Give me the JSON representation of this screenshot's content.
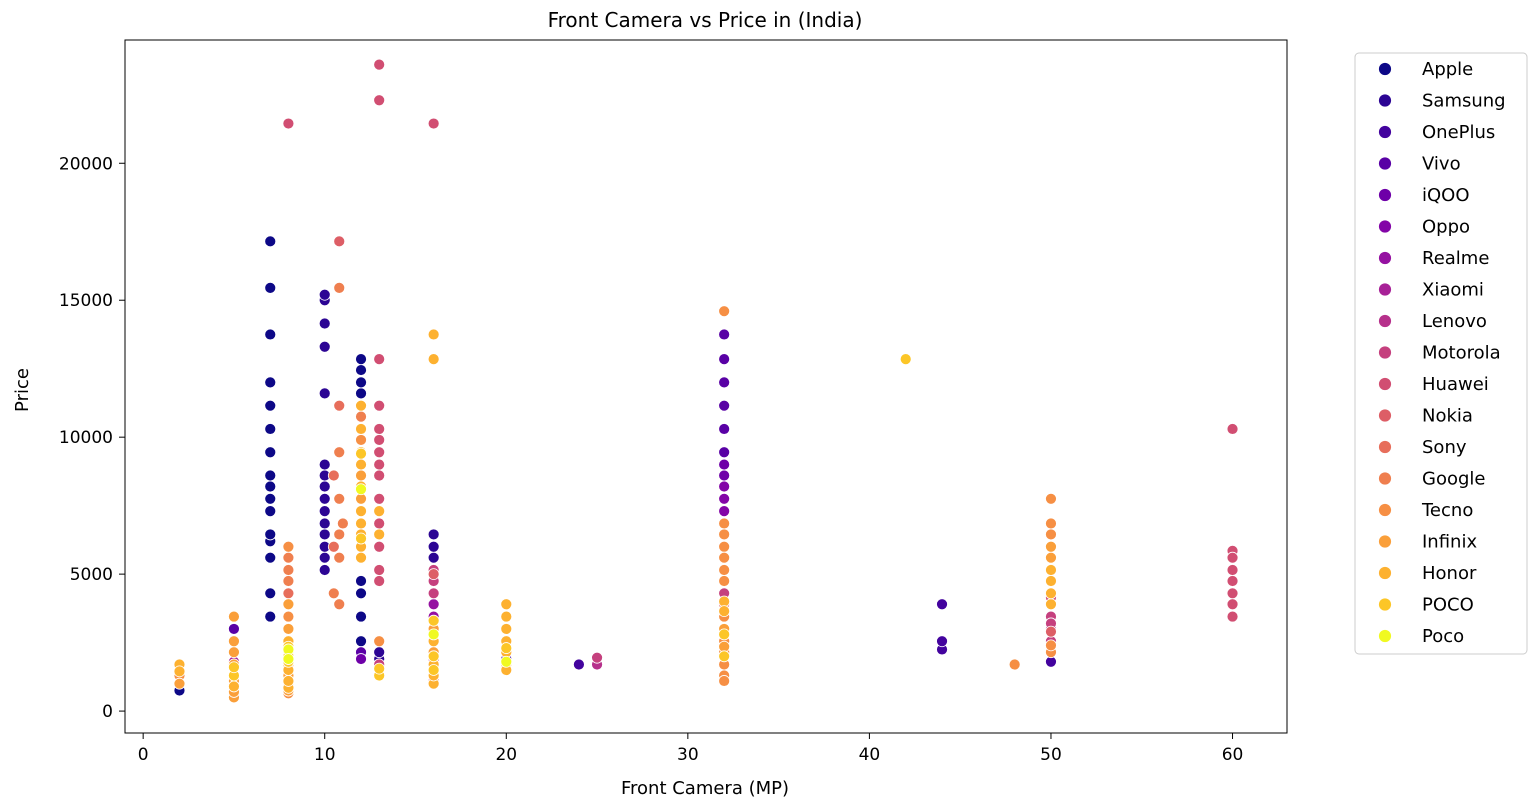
{
  "chart_data": {
    "type": "scatter",
    "title": "Front Camera vs Price in (India)",
    "xlabel": "Front Camera (MP)",
    "ylabel": "Price",
    "xlim": [
      -1,
      63
    ],
    "ylim": [
      -800,
      24500
    ],
    "x_ticks": [
      0,
      10,
      20,
      30,
      40,
      50,
      60
    ],
    "x_tick_labels": [
      "0",
      "10",
      "20",
      "30",
      "40",
      "50",
      "60"
    ],
    "y_ticks": [
      0,
      5000,
      10000,
      15000,
      20000
    ],
    "y_tick_labels": [
      "0",
      "5000",
      "10000",
      "15000",
      "20000"
    ],
    "grid": false,
    "legend_position": "outside-right",
    "series": [
      {
        "name": "Apple",
        "color": "#0d0887",
        "points": [
          [
            2,
            750
          ],
          [
            7,
            3450
          ],
          [
            7,
            4300
          ],
          [
            7,
            5600
          ],
          [
            7,
            6200
          ],
          [
            7,
            6450
          ],
          [
            7,
            7300
          ],
          [
            7,
            7750
          ],
          [
            7,
            8200
          ],
          [
            7,
            8600
          ],
          [
            7,
            9450
          ],
          [
            7,
            10300
          ],
          [
            7,
            11150
          ],
          [
            7,
            12000
          ],
          [
            7,
            13750
          ],
          [
            7,
            15450
          ],
          [
            7,
            17150
          ],
          [
            12,
            2550
          ],
          [
            12,
            3450
          ],
          [
            12,
            4300
          ],
          [
            12,
            4750
          ],
          [
            12,
            6000
          ],
          [
            12,
            7300
          ],
          [
            12,
            8600
          ],
          [
            12,
            9900
          ],
          [
            12,
            10750
          ],
          [
            12,
            11150
          ],
          [
            12,
            11600
          ],
          [
            12,
            12000
          ],
          [
            12,
            12450
          ],
          [
            12,
            12850
          ]
        ]
      },
      {
        "name": "Samsung",
        "color": "#2c0594",
        "points": [
          [
            10,
            5150
          ],
          [
            10,
            5600
          ],
          [
            10,
            6000
          ],
          [
            10,
            6450
          ],
          [
            10,
            6850
          ],
          [
            10,
            7300
          ],
          [
            10,
            7750
          ],
          [
            10,
            8200
          ],
          [
            10,
            8600
          ],
          [
            10,
            9000
          ],
          [
            10,
            11600
          ],
          [
            10,
            13300
          ],
          [
            10,
            14150
          ],
          [
            10,
            15000
          ],
          [
            10,
            15200
          ],
          [
            13,
            1900
          ],
          [
            13,
            2150
          ],
          [
            16,
            3450
          ],
          [
            16,
            3900
          ],
          [
            16,
            4300
          ],
          [
            16,
            4750
          ],
          [
            16,
            5150
          ],
          [
            16,
            5600
          ],
          [
            16,
            6000
          ],
          [
            16,
            6450
          ]
        ]
      },
      {
        "name": "OnePlus",
        "color": "#43039e",
        "points": [
          [
            13,
            1700
          ],
          [
            20,
            1900
          ],
          [
            20,
            2150
          ],
          [
            24,
            1700
          ],
          [
            44,
            2250
          ],
          [
            44,
            2550
          ],
          [
            44,
            3900
          ],
          [
            50,
            1800
          ]
        ]
      },
      {
        "name": "Vivo",
        "color": "#5901a5",
        "points": [
          [
            32,
            9450
          ],
          [
            32,
            10300
          ],
          [
            32,
            11150
          ],
          [
            32,
            12000
          ],
          [
            32,
            12850
          ],
          [
            32,
            13750
          ],
          [
            5,
            3000
          ],
          [
            12,
            2150
          ],
          [
            16,
            3000
          ]
        ]
      },
      {
        "name": "iQOO",
        "color": "#6e00a8",
        "points": [
          [
            32,
            8600
          ],
          [
            32,
            9000
          ],
          [
            12,
            1900
          ]
        ]
      },
      {
        "name": "Oppo",
        "color": "#8305a7",
        "points": [
          [
            32,
            7300
          ],
          [
            32,
            7750
          ],
          [
            32,
            8200
          ],
          [
            16,
            2550
          ],
          [
            5,
            2150
          ]
        ]
      },
      {
        "name": "Realme",
        "color": "#9511a1",
        "points": [
          [
            16,
            3450
          ],
          [
            16,
            3900
          ],
          [
            8,
            2150
          ],
          [
            32,
            6850
          ]
        ]
      },
      {
        "name": "Xiaomi",
        "color": "#a72197",
        "points": [
          [
            16,
            2150
          ],
          [
            16,
            3000
          ],
          [
            32,
            6000
          ],
          [
            32,
            6450
          ],
          [
            5,
            1800
          ],
          [
            50,
            3000
          ]
        ]
      },
      {
        "name": "Lenovo",
        "color": "#b6308b",
        "points": [
          [
            16,
            1700
          ],
          [
            16,
            1900
          ],
          [
            32,
            5150
          ],
          [
            32,
            5600
          ],
          [
            25,
            1700
          ],
          [
            8,
            1900
          ]
        ]
      },
      {
        "name": "Motorola",
        "color": "#c5407e",
        "points": [
          [
            16,
            4300
          ],
          [
            16,
            4750
          ],
          [
            16,
            5150
          ],
          [
            32,
            4300
          ],
          [
            32,
            4750
          ],
          [
            32,
            2550
          ],
          [
            13,
            1700
          ],
          [
            25,
            1950
          ],
          [
            50,
            2550
          ],
          [
            50,
            3450
          ],
          [
            50,
            3200
          ],
          [
            16,
            2550
          ],
          [
            16,
            1300
          ],
          [
            16,
            1100
          ]
        ]
      },
      {
        "name": "Huawei",
        "color": "#d14e72",
        "points": [
          [
            8,
            21450
          ],
          [
            13,
            23600
          ],
          [
            13,
            22300
          ],
          [
            16,
            21450
          ],
          [
            13,
            12850
          ],
          [
            13,
            11150
          ],
          [
            13,
            10300
          ],
          [
            13,
            9900
          ],
          [
            13,
            9450
          ],
          [
            13,
            9000
          ],
          [
            13,
            8600
          ],
          [
            13,
            7750
          ],
          [
            13,
            6850
          ],
          [
            13,
            6000
          ],
          [
            13,
            5150
          ],
          [
            13,
            4750
          ],
          [
            60,
            10300
          ],
          [
            60,
            5850
          ],
          [
            60,
            5600
          ],
          [
            60,
            5150
          ],
          [
            60,
            4750
          ],
          [
            60,
            4300
          ],
          [
            60,
            3900
          ],
          [
            60,
            3450
          ],
          [
            50,
            4150
          ]
        ]
      },
      {
        "name": "Nokia",
        "color": "#dd5e66",
        "points": [
          [
            10.8,
            17150
          ],
          [
            12,
            8200
          ],
          [
            16,
            5000
          ],
          [
            50,
            2900
          ],
          [
            32,
            3900
          ],
          [
            5,
            1700
          ]
        ]
      },
      {
        "name": "Sony",
        "color": "#e76e5b",
        "points": [
          [
            10.8,
            11150
          ],
          [
            12,
            7300
          ],
          [
            10.5,
            6000
          ],
          [
            10.5,
            8600
          ],
          [
            8,
            4300
          ],
          [
            8,
            3900
          ]
        ]
      },
      {
        "name": "Google",
        "color": "#ef7f4f",
        "points": [
          [
            10.8,
            15450
          ],
          [
            10.8,
            9450
          ],
          [
            10.8,
            7750
          ],
          [
            11,
            6850
          ],
          [
            10.8,
            6450
          ],
          [
            10.8,
            5600
          ],
          [
            10.5,
            4300
          ],
          [
            10.8,
            3900
          ],
          [
            8,
            5600
          ],
          [
            8,
            5150
          ],
          [
            8,
            4750
          ],
          [
            12,
            10750
          ],
          [
            12,
            9450
          ]
        ]
      },
      {
        "name": "Tecno",
        "color": "#f68f44",
        "points": [
          [
            32,
            14600
          ],
          [
            32,
            6850
          ],
          [
            32,
            6450
          ],
          [
            32,
            6000
          ],
          [
            32,
            5600
          ],
          [
            32,
            5150
          ],
          [
            32,
            4750
          ],
          [
            32,
            3450
          ],
          [
            32,
            3000
          ],
          [
            32,
            2550
          ],
          [
            32,
            2150
          ],
          [
            32,
            1700
          ],
          [
            32,
            1300
          ],
          [
            32,
            1100
          ],
          [
            50,
            7750
          ],
          [
            50,
            6850
          ],
          [
            50,
            6450
          ],
          [
            50,
            2150
          ],
          [
            50,
            2400
          ],
          [
            48,
            1700
          ],
          [
            8,
            6000
          ],
          [
            8,
            3450
          ],
          [
            8,
            2550
          ],
          [
            8,
            650
          ],
          [
            13,
            2550
          ],
          [
            12,
            9900
          ],
          [
            2,
            1300
          ]
        ]
      },
      {
        "name": "Infinix",
        "color": "#fa9f3a",
        "points": [
          [
            5,
            500
          ],
          [
            5,
            700
          ],
          [
            5,
            1100
          ],
          [
            5,
            1300
          ],
          [
            5,
            1700
          ],
          [
            5,
            2150
          ],
          [
            5,
            2550
          ],
          [
            5,
            3450
          ],
          [
            8,
            750
          ],
          [
            8,
            1000
          ],
          [
            8,
            1300
          ],
          [
            8,
            1700
          ],
          [
            8,
            2150
          ],
          [
            8,
            3000
          ],
          [
            8,
            3900
          ],
          [
            12,
            8600
          ],
          [
            12,
            7750
          ],
          [
            50,
            5600
          ],
          [
            50,
            6000
          ],
          [
            32,
            3000
          ],
          [
            32,
            2350
          ],
          [
            16,
            2150
          ],
          [
            16,
            3000
          ],
          [
            2,
            1000
          ]
        ]
      },
      {
        "name": "Honor",
        "color": "#fdb130",
        "points": [
          [
            16,
            13750
          ],
          [
            16,
            12850
          ],
          [
            12,
            11150
          ],
          [
            12,
            10300
          ],
          [
            12,
            9450
          ],
          [
            12,
            9000
          ],
          [
            12,
            8200
          ],
          [
            12,
            7300
          ],
          [
            12,
            6850
          ],
          [
            12,
            6450
          ],
          [
            12,
            6000
          ],
          [
            12,
            5600
          ],
          [
            13,
            7300
          ],
          [
            13,
            6450
          ],
          [
            20,
            3900
          ],
          [
            20,
            3450
          ],
          [
            20,
            3000
          ],
          [
            20,
            2550
          ],
          [
            20,
            2150
          ],
          [
            20,
            1700
          ],
          [
            20,
            1500
          ],
          [
            2,
            1700
          ],
          [
            2,
            1450
          ],
          [
            5,
            900
          ],
          [
            8,
            850
          ],
          [
            8,
            1100
          ],
          [
            8,
            1500
          ],
          [
            8,
            2550
          ],
          [
            16,
            1000
          ],
          [
            16,
            1300
          ],
          [
            16,
            1700
          ],
          [
            16,
            2550
          ],
          [
            32,
            4000
          ],
          [
            32,
            3650
          ],
          [
            50,
            3900
          ],
          [
            50,
            4300
          ],
          [
            50,
            4750
          ],
          [
            50,
            5150
          ]
        ]
      },
      {
        "name": "POCO",
        "color": "#fcc627",
        "points": [
          [
            42,
            12850
          ],
          [
            12,
            9400
          ],
          [
            12,
            6300
          ],
          [
            13,
            1300
          ],
          [
            13,
            1550
          ],
          [
            8,
            2000
          ],
          [
            8,
            1800
          ],
          [
            8,
            2350
          ],
          [
            16,
            2000
          ],
          [
            16,
            1500
          ],
          [
            16,
            3300
          ],
          [
            20,
            2300
          ],
          [
            32,
            2800
          ],
          [
            32,
            2000
          ],
          [
            5,
            1300
          ],
          [
            5,
            1600
          ]
        ]
      },
      {
        "name": "Poco",
        "color": "#f0f921",
        "points": [
          [
            8,
            2250
          ],
          [
            8,
            1900
          ],
          [
            12,
            8100
          ],
          [
            16,
            2800
          ],
          [
            20,
            1800
          ]
        ]
      }
    ]
  }
}
